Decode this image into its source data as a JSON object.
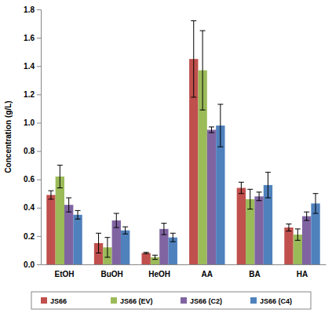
{
  "chart_data": {
    "type": "bar",
    "y_label": "Concentration (g/L)",
    "categories": [
      "EtOH",
      "BuOH",
      "HeOH",
      "AA",
      "BA",
      "HA"
    ],
    "series": [
      {
        "name": "JS66",
        "color": "#c0504d",
        "values": [
          0.49,
          0.15,
          0.08,
          1.45,
          0.54,
          0.26
        ],
        "errors": [
          0.03,
          0.07,
          0.005,
          0.27,
          0.04,
          0.025
        ]
      },
      {
        "name": "JS66 (EV)",
        "color": "#9bbb59",
        "values": [
          0.62,
          0.12,
          0.05,
          1.37,
          0.46,
          0.21
        ],
        "errors": [
          0.08,
          0.07,
          0.015,
          0.28,
          0.07,
          0.04
        ]
      },
      {
        "name": "JS66 (C2)",
        "color": "#8064a2",
        "values": [
          0.42,
          0.31,
          0.25,
          0.95,
          0.48,
          0.34
        ],
        "errors": [
          0.05,
          0.05,
          0.04,
          0.02,
          0.03,
          0.03
        ]
      },
      {
        "name": "JS66 (C4)",
        "color": "#4f81bd",
        "values": [
          0.35,
          0.24,
          0.19,
          0.98,
          0.56,
          0.43
        ],
        "errors": [
          0.03,
          0.025,
          0.03,
          0.15,
          0.09,
          0.07
        ]
      }
    ],
    "ylim": [
      0,
      1.8
    ],
    "yticks": [
      {
        "value": 0,
        "label": "0.0"
      },
      0.2,
      0.4,
      0.6,
      0.8,
      {
        "value": 1,
        "label": "1.0"
      },
      1.2,
      1.4,
      1.6,
      1.8
    ],
    "grid": false,
    "legend": "bottom"
  }
}
